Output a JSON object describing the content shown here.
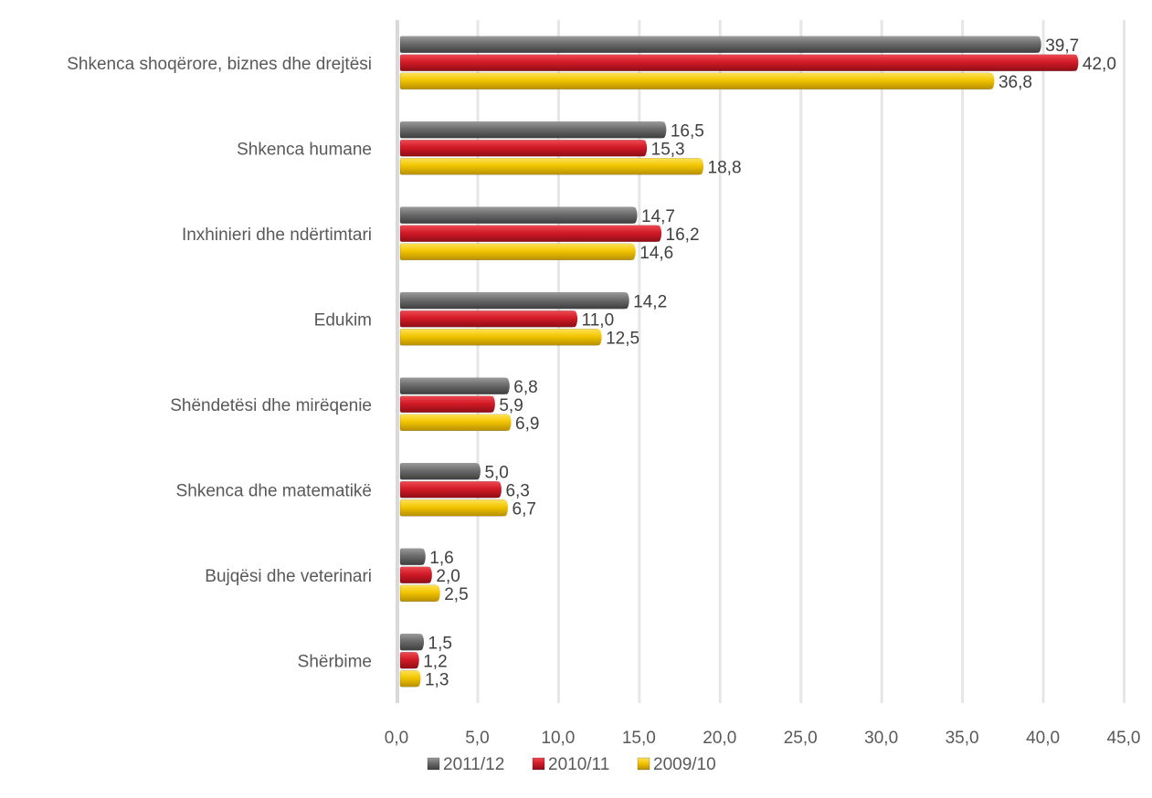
{
  "chart_data": {
    "type": "bar",
    "orientation": "horizontal",
    "categories": [
      "Shkenca shoqërore, biznes dhe drejtësi",
      "Shkenca humane",
      "Inxhinieri dhe ndërtimtari",
      "Edukim",
      "Shëndetësi dhe mirëqenie",
      "Shkenca dhe matematikë",
      "Bujqësi dhe veterinari",
      "Shërbime"
    ],
    "series": [
      {
        "name": "2011/12",
        "color": "#6b6b6b",
        "values": [
          39.7,
          16.5,
          14.7,
          14.2,
          6.8,
          5.0,
          1.6,
          1.5
        ],
        "labels": [
          "39,7",
          "16,5",
          "14,7",
          "14,2",
          "6,8",
          "5,0",
          "1,6",
          "1,5"
        ]
      },
      {
        "name": "2010/11",
        "color": "#d21b27",
        "values": [
          42.0,
          15.3,
          16.2,
          11.0,
          5.9,
          6.3,
          2.0,
          1.2
        ],
        "labels": [
          "42,0",
          "15,3",
          "16,2",
          "11,0",
          "5,9",
          "6,3",
          "2,0",
          "1,2"
        ]
      },
      {
        "name": "2009/10",
        "color": "#f2c500",
        "values": [
          36.8,
          18.8,
          14.6,
          12.5,
          6.9,
          6.7,
          2.5,
          1.3
        ],
        "labels": [
          "36,8",
          "18,8",
          "14,6",
          "12,5",
          "6,9",
          "6,7",
          "2,5",
          "1,3"
        ]
      }
    ],
    "xlim": [
      0,
      45
    ],
    "xticks": [
      "0,0",
      "5,0",
      "10,0",
      "15,0",
      "20,0",
      "25,0",
      "30,0",
      "35,0",
      "40,0",
      "45,0"
    ],
    "grid": true,
    "legend_position": "bottom",
    "title": "",
    "xlabel": "",
    "ylabel": ""
  }
}
